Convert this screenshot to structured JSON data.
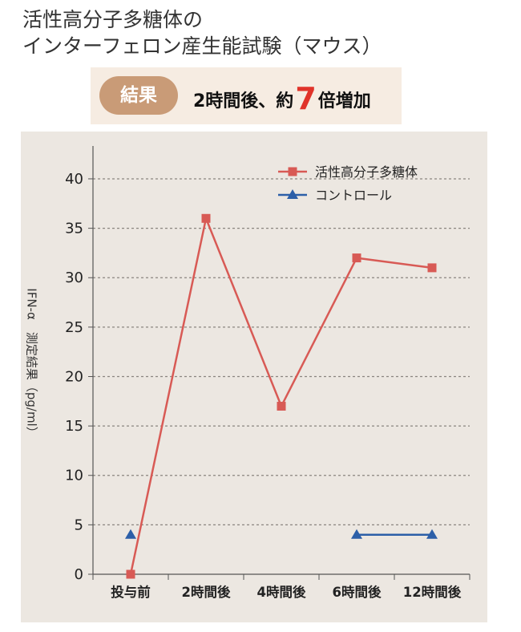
{
  "header": {
    "title_line1": "活性高分子多糖体の",
    "title_line2": "インターフェロン産生能試験（マウス）",
    "result_label": "結果",
    "result_prefix": "2時間後、約",
    "result_number": "7",
    "result_suffix": "倍増加"
  },
  "chart_data": {
    "type": "line",
    "categories": [
      "投与前",
      "2時間後",
      "4時間後",
      "6時間後",
      "12時間後"
    ],
    "ylabel": "IFN-α　測定結果（pg/ml）",
    "ylim": [
      0,
      43
    ],
    "yticks": [
      0,
      5,
      10,
      15,
      20,
      25,
      30,
      35,
      40
    ],
    "grid": true,
    "legend_position": "top-right",
    "series": [
      {
        "name": "活性高分子多糖体",
        "color": "#d85a55",
        "marker": "square",
        "values": [
          0,
          36,
          17,
          32,
          31
        ]
      },
      {
        "name": "コントロール",
        "color": "#2c5fa8",
        "marker": "triangle",
        "values": [
          4,
          null,
          null,
          4,
          4
        ]
      }
    ]
  }
}
